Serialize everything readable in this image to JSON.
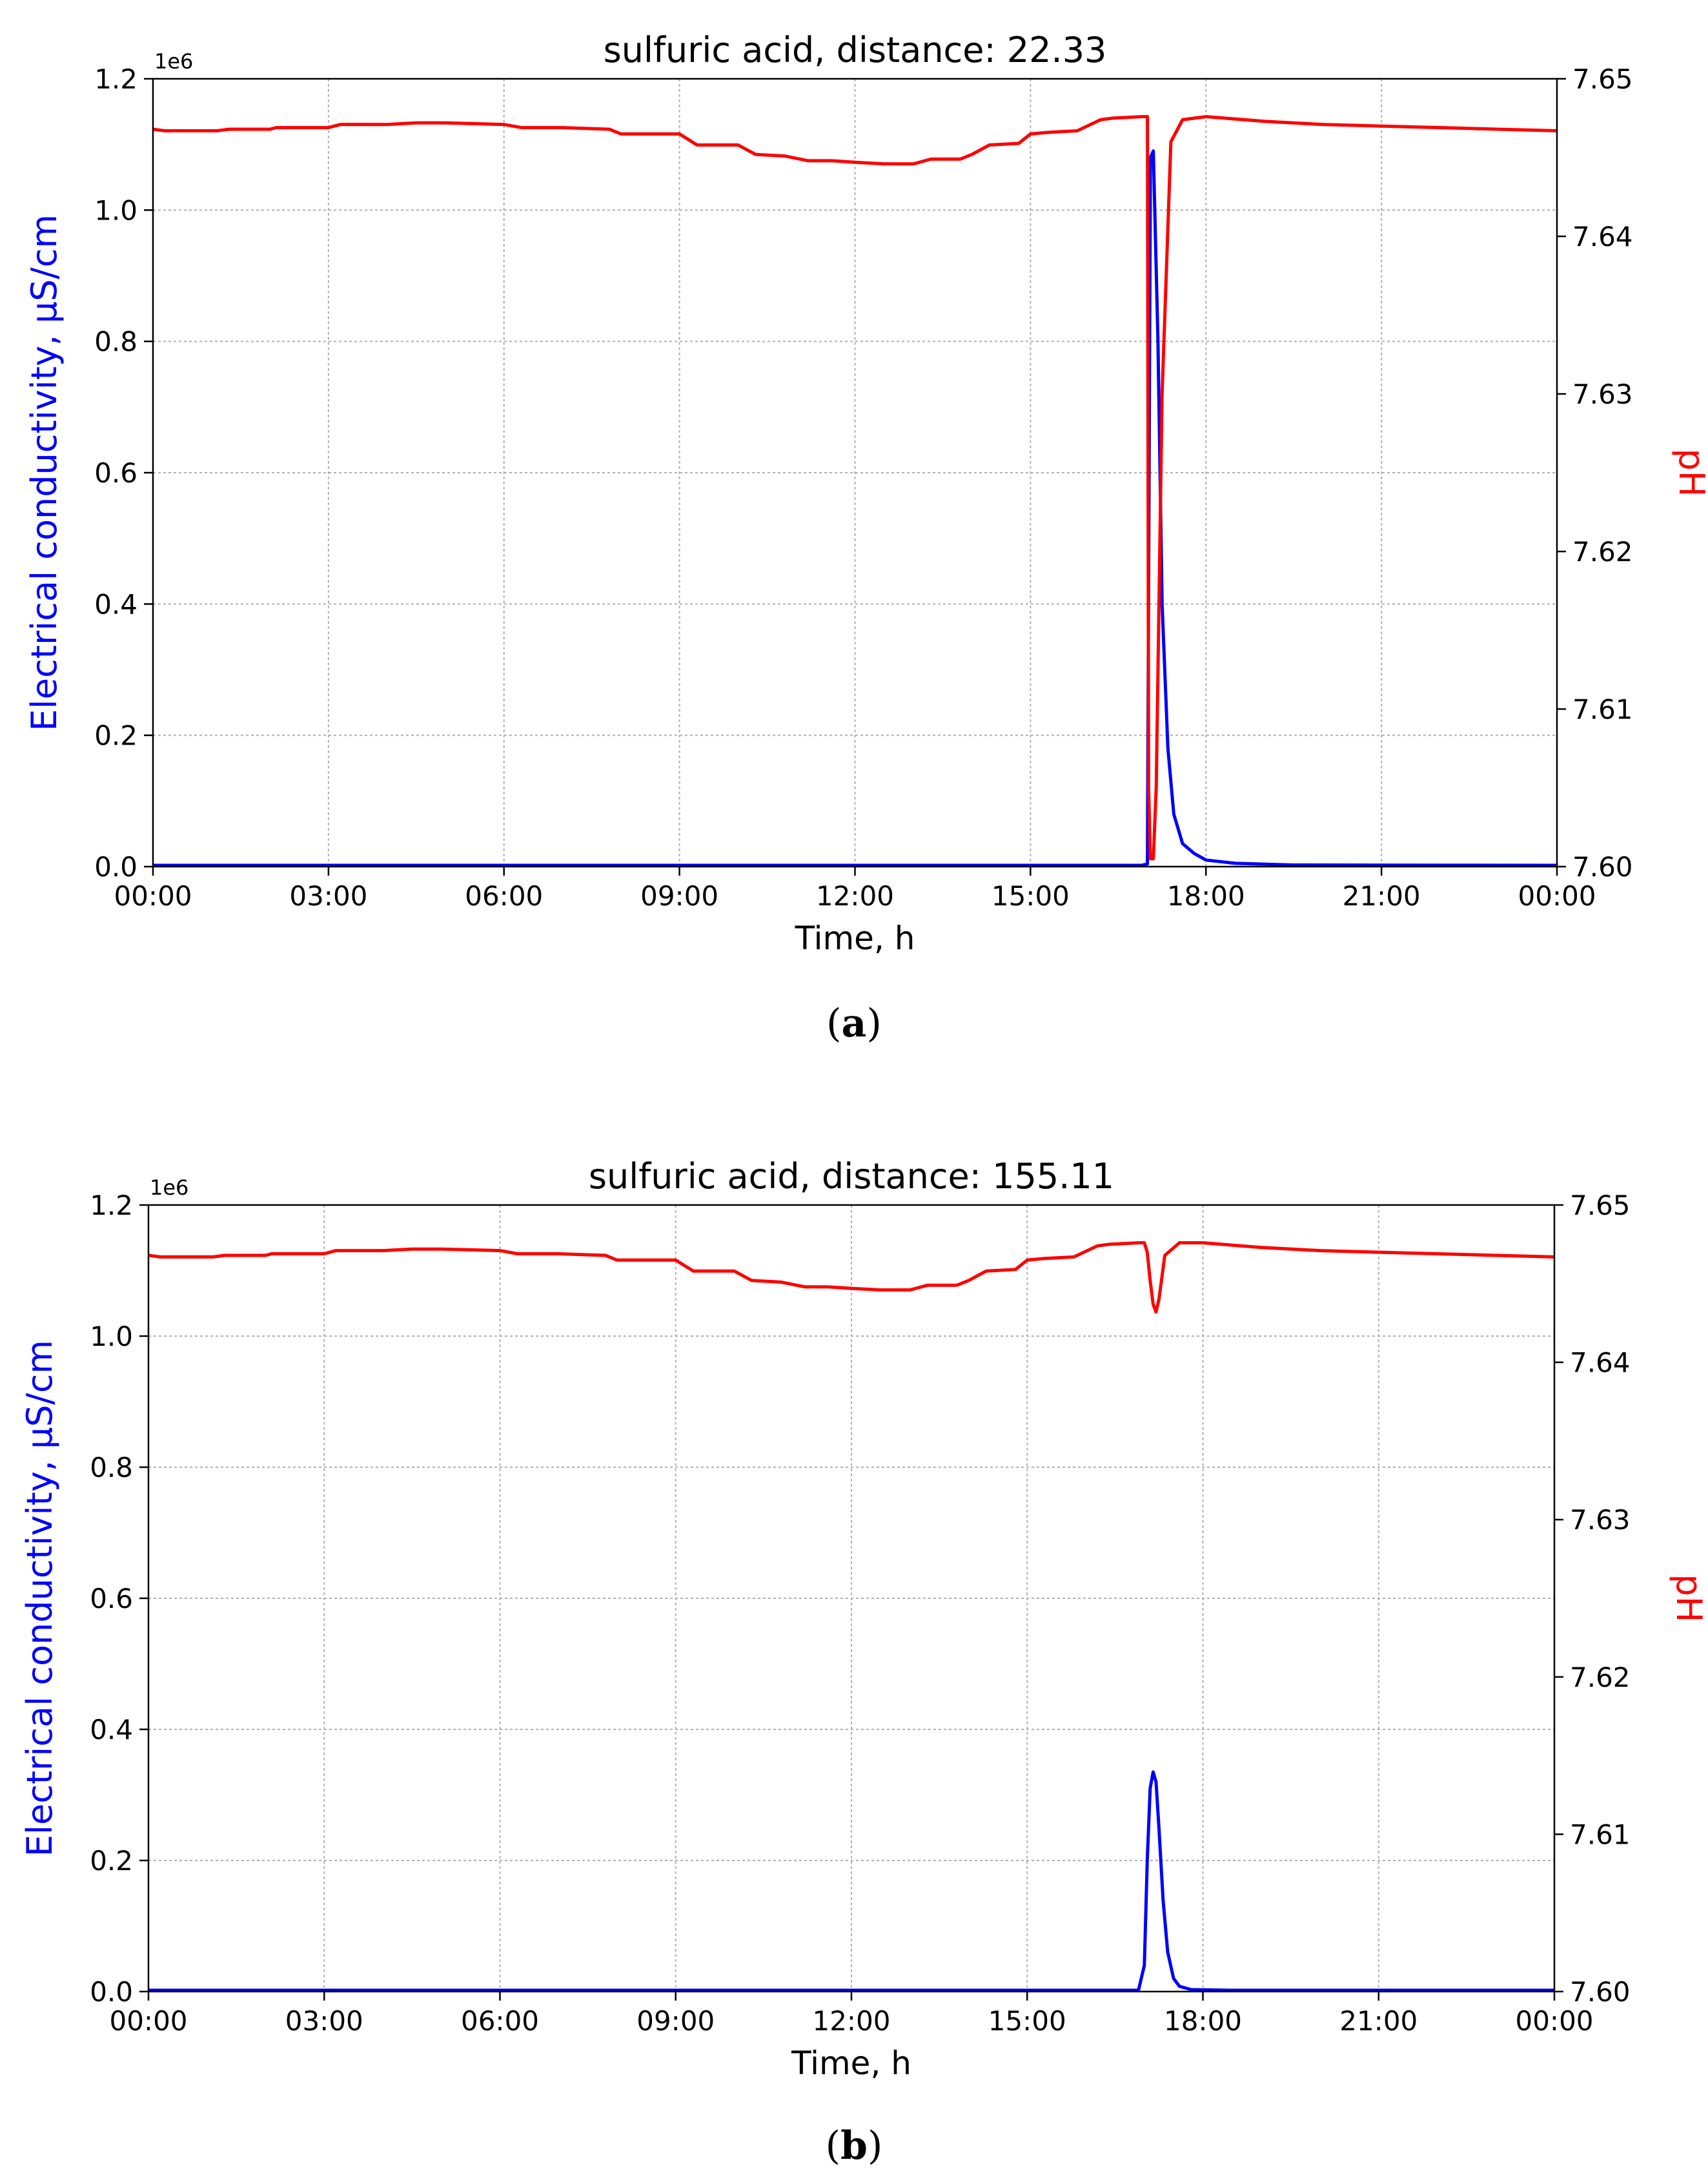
{
  "chart_data": [
    {
      "type": "line",
      "panel_label": "a",
      "title": "sulfuric acid, distance: 22.33",
      "xlabel": "Time, h",
      "ylabel_left": "Electrical conductivity, µS/cm",
      "ylabel_right": "pH",
      "y_left_offset_text": "1e6",
      "xlim": [
        0,
        24
      ],
      "x_ticks": [
        "00:00",
        "03:00",
        "06:00",
        "09:00",
        "12:00",
        "15:00",
        "18:00",
        "21:00",
        "00:00"
      ],
      "y_left_lim": [
        0,
        1200000
      ],
      "y_left_ticks": [
        "0.0",
        "0.2",
        "0.4",
        "0.6",
        "0.8",
        "1.0",
        "1.2"
      ],
      "y_right_lim": [
        7.6,
        7.65
      ],
      "y_right_ticks": [
        "7.60",
        "7.61",
        "7.62",
        "7.63",
        "7.64",
        "7.65"
      ],
      "grid": true,
      "colors": {
        "conductivity": "#0000ff",
        "ph": "#ff0000"
      },
      "series": [
        {
          "axis": "left",
          "color": "#0000ff",
          "x": [
            0,
            16.9,
            17.0,
            17.05,
            17.1,
            17.18,
            17.25,
            17.35,
            17.45,
            17.6,
            17.8,
            18.0,
            18.5,
            19.5,
            24
          ],
          "y": [
            2000,
            2000,
            4000,
            1080000,
            1090000,
            800000,
            400000,
            180000,
            80000,
            35000,
            20000,
            10000,
            5000,
            2500,
            2000
          ]
        },
        {
          "axis": "right",
          "color": "#ff0000",
          "x": [
            0,
            0.2,
            0.5,
            1.1,
            1.3,
            2.0,
            2.1,
            3.0,
            3.2,
            4.0,
            4.5,
            5.0,
            6.0,
            6.3,
            7.0,
            7.8,
            8.0,
            9.0,
            9.3,
            10.0,
            10.3,
            10.8,
            11.2,
            11.6,
            12.0,
            12.5,
            13.0,
            13.3,
            13.8,
            14.0,
            14.3,
            14.8,
            15.0,
            15.3,
            15.8,
            16.2,
            16.4,
            16.9,
            17.0,
            17.02,
            17.05,
            17.1,
            17.15,
            17.25,
            17.4,
            17.6,
            18.0,
            19.0,
            20.0,
            21.0,
            22.0,
            23.0,
            24.0
          ],
          "y": [
            7.6468,
            7.6467,
            7.6467,
            7.6467,
            7.6468,
            7.6468,
            7.6469,
            7.6469,
            7.6471,
            7.6471,
            7.6472,
            7.6472,
            7.6471,
            7.6469,
            7.6469,
            7.6468,
            7.6465,
            7.6465,
            7.6458,
            7.6458,
            7.6452,
            7.6451,
            7.6448,
            7.6448,
            7.6447,
            7.6446,
            7.6446,
            7.6449,
            7.6449,
            7.6452,
            7.6458,
            7.6459,
            7.6465,
            7.6466,
            7.6467,
            7.6474,
            7.6475,
            7.6476,
            7.6476,
            7.605,
            7.6005,
            7.6005,
            7.605,
            7.63,
            7.646,
            7.6474,
            7.6476,
            7.6473,
            7.6471,
            7.647,
            7.6469,
            7.6468,
            7.6467
          ]
        }
      ]
    },
    {
      "type": "line",
      "panel_label": "b",
      "title": "sulfuric acid, distance: 155.11",
      "xlabel": "Time, h",
      "ylabel_left": "Electrical conductivity, µS/cm",
      "ylabel_right": "pH",
      "y_left_offset_text": "1e6",
      "xlim": [
        0,
        24
      ],
      "x_ticks": [
        "00:00",
        "03:00",
        "06:00",
        "09:00",
        "12:00",
        "15:00",
        "18:00",
        "21:00",
        "00:00"
      ],
      "y_left_lim": [
        0,
        1200000
      ],
      "y_left_ticks": [
        "0.0",
        "0.2",
        "0.4",
        "0.6",
        "0.8",
        "1.0",
        "1.2"
      ],
      "y_right_lim": [
        7.6,
        7.65
      ],
      "y_right_ticks": [
        "7.60",
        "7.61",
        "7.62",
        "7.63",
        "7.64",
        "7.65"
      ],
      "grid": true,
      "colors": {
        "conductivity": "#0000ff",
        "ph": "#ff0000"
      },
      "series": [
        {
          "axis": "left",
          "color": "#0000ff",
          "x": [
            0,
            16.9,
            17.0,
            17.05,
            17.1,
            17.15,
            17.2,
            17.25,
            17.32,
            17.4,
            17.5,
            17.6,
            17.8,
            18.5,
            24
          ],
          "y": [
            2000,
            2000,
            40000,
            200000,
            310000,
            335000,
            320000,
            250000,
            140000,
            60000,
            20000,
            8000,
            3000,
            2000,
            2000
          ]
        },
        {
          "axis": "right",
          "color": "#ff0000",
          "x": [
            0,
            0.2,
            0.5,
            1.1,
            1.3,
            2.0,
            2.1,
            3.0,
            3.2,
            4.0,
            4.5,
            5.0,
            6.0,
            6.3,
            7.0,
            7.8,
            8.0,
            9.0,
            9.3,
            10.0,
            10.3,
            10.8,
            11.2,
            11.6,
            12.0,
            12.5,
            13.0,
            13.3,
            13.8,
            14.0,
            14.3,
            14.8,
            15.0,
            15.3,
            15.8,
            16.2,
            16.4,
            16.9,
            17.0,
            17.05,
            17.1,
            17.15,
            17.2,
            17.25,
            17.35,
            17.6,
            18.0,
            19.0,
            20.0,
            21.0,
            22.0,
            23.0,
            24.0
          ],
          "y": [
            7.6468,
            7.6467,
            7.6467,
            7.6467,
            7.6468,
            7.6468,
            7.6469,
            7.6469,
            7.6471,
            7.6471,
            7.6472,
            7.6472,
            7.6471,
            7.6469,
            7.6469,
            7.6468,
            7.6465,
            7.6465,
            7.6458,
            7.6458,
            7.6452,
            7.6451,
            7.6448,
            7.6448,
            7.6447,
            7.6446,
            7.6446,
            7.6449,
            7.6449,
            7.6452,
            7.6458,
            7.6459,
            7.6465,
            7.6466,
            7.6467,
            7.6474,
            7.6475,
            7.6476,
            7.6476,
            7.647,
            7.6452,
            7.6437,
            7.6432,
            7.644,
            7.6468,
            7.6476,
            7.6476,
            7.6473,
            7.6471,
            7.647,
            7.6469,
            7.6468,
            7.6467
          ]
        }
      ]
    }
  ]
}
